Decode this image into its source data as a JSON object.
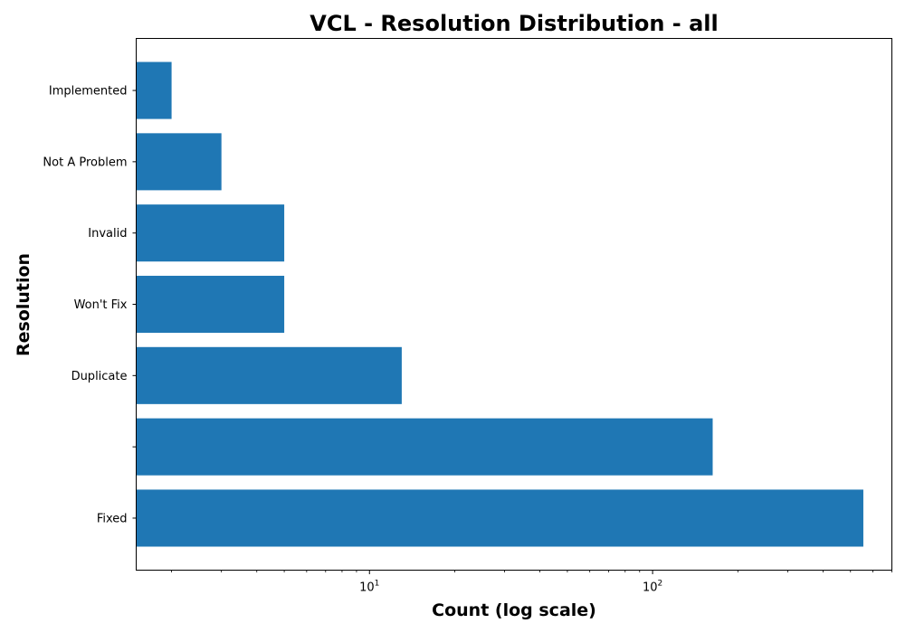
{
  "chart_data": {
    "type": "bar",
    "orientation": "horizontal",
    "title": "VCL - Resolution Distribution - all",
    "xlabel": "Count (log scale)",
    "ylabel": "Resolution",
    "xscale": "log",
    "xlim": [
      1.5,
      700
    ],
    "x_ticks_major": [
      {
        "value": 10,
        "base": "10",
        "exp": "1"
      },
      {
        "value": 100,
        "base": "10",
        "exp": "2"
      }
    ],
    "grid": false,
    "categories": [
      "Fixed",
      "",
      "Duplicate",
      "Won't Fix",
      "Invalid",
      "Not A Problem",
      "Implemented"
    ],
    "values": [
      555,
      163,
      13,
      5,
      5,
      3,
      2
    ],
    "bar_color": "#1f77b4"
  }
}
